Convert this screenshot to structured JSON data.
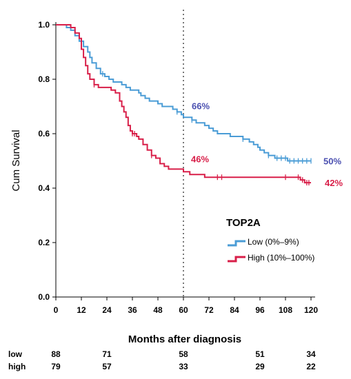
{
  "chart_data": {
    "type": "line",
    "subtype": "kaplan-meier-step",
    "title": "",
    "xlabel": "Months after diagnosis",
    "ylabel": "Cum Survival",
    "xlim": [
      0,
      120
    ],
    "ylim": [
      0,
      1
    ],
    "x_ticks": [
      0,
      12,
      24,
      36,
      48,
      60,
      72,
      84,
      96,
      108,
      120
    ],
    "y_ticks": [
      "0.0",
      "0.2",
      "0.4",
      "0.6",
      "0.8",
      "1.0"
    ],
    "reference_line": {
      "x": 60,
      "style": "dotted"
    },
    "legend": {
      "title": "TOP2A",
      "position": "right-middle"
    },
    "series": [
      {
        "name": "Low (0%–9%)",
        "color": "#4a9cd6",
        "points": [
          [
            0,
            1.0
          ],
          [
            3,
            1.0
          ],
          [
            5,
            0.99
          ],
          [
            7,
            0.98
          ],
          [
            9,
            0.96
          ],
          [
            11,
            0.94
          ],
          [
            13,
            0.92
          ],
          [
            15,
            0.9
          ],
          [
            16,
            0.88
          ],
          [
            17,
            0.86
          ],
          [
            19,
            0.84
          ],
          [
            21,
            0.82
          ],
          [
            23,
            0.81
          ],
          [
            25,
            0.8
          ],
          [
            27,
            0.79
          ],
          [
            29,
            0.79
          ],
          [
            31,
            0.78
          ],
          [
            33,
            0.77
          ],
          [
            35,
            0.76
          ],
          [
            37,
            0.76
          ],
          [
            39,
            0.75
          ],
          [
            40,
            0.74
          ],
          [
            42,
            0.73
          ],
          [
            44,
            0.72
          ],
          [
            46,
            0.72
          ],
          [
            48,
            0.71
          ],
          [
            50,
            0.7
          ],
          [
            53,
            0.7
          ],
          [
            55,
            0.69
          ],
          [
            57,
            0.68
          ],
          [
            59,
            0.67
          ],
          [
            60,
            0.66
          ],
          [
            62,
            0.66
          ],
          [
            64,
            0.65
          ],
          [
            66,
            0.64
          ],
          [
            68,
            0.64
          ],
          [
            70,
            0.63
          ],
          [
            72,
            0.62
          ],
          [
            74,
            0.61
          ],
          [
            76,
            0.6
          ],
          [
            79,
            0.6
          ],
          [
            82,
            0.59
          ],
          [
            85,
            0.59
          ],
          [
            88,
            0.58
          ],
          [
            91,
            0.57
          ],
          [
            93,
            0.56
          ],
          [
            95,
            0.55
          ],
          [
            96,
            0.54
          ],
          [
            98,
            0.53
          ],
          [
            100,
            0.52
          ],
          [
            103,
            0.51
          ],
          [
            106,
            0.51
          ],
          [
            109,
            0.5
          ],
          [
            120,
            0.5
          ]
        ],
        "censor_x": [
          22,
          57,
          64,
          88,
          100,
          104,
          106,
          108,
          110,
          112,
          114,
          116,
          118,
          120
        ],
        "annotations": [
          {
            "x": 60,
            "label": "66%"
          },
          {
            "x": 120,
            "label": "50%"
          }
        ]
      },
      {
        "name": "High (10%–100%)",
        "color": "#d81e48",
        "points": [
          [
            0,
            1.0
          ],
          [
            5,
            1.0
          ],
          [
            7,
            0.99
          ],
          [
            9,
            0.97
          ],
          [
            11,
            0.95
          ],
          [
            12,
            0.91
          ],
          [
            13,
            0.88
          ],
          [
            14,
            0.85
          ],
          [
            15,
            0.82
          ],
          [
            16,
            0.8
          ],
          [
            18,
            0.78
          ],
          [
            20,
            0.77
          ],
          [
            24,
            0.77
          ],
          [
            26,
            0.76
          ],
          [
            28,
            0.75
          ],
          [
            30,
            0.72
          ],
          [
            31,
            0.7
          ],
          [
            32,
            0.68
          ],
          [
            33,
            0.66
          ],
          [
            34,
            0.63
          ],
          [
            35,
            0.61
          ],
          [
            36,
            0.6
          ],
          [
            38,
            0.59
          ],
          [
            39,
            0.58
          ],
          [
            41,
            0.56
          ],
          [
            43,
            0.54
          ],
          [
            45,
            0.52
          ],
          [
            47,
            0.51
          ],
          [
            49,
            0.49
          ],
          [
            51,
            0.48
          ],
          [
            53,
            0.47
          ],
          [
            59,
            0.47
          ],
          [
            60,
            0.46
          ],
          [
            63,
            0.45
          ],
          [
            66,
            0.45
          ],
          [
            70,
            0.44
          ],
          [
            112,
            0.44
          ],
          [
            115,
            0.43
          ],
          [
            117,
            0.42
          ],
          [
            120,
            0.42
          ]
        ],
        "censor_x": [
          18,
          36,
          37,
          45,
          76,
          78,
          108,
          114,
          116,
          118,
          119
        ],
        "annotations": [
          {
            "x": 60,
            "label": "46%"
          },
          {
            "x": 120,
            "label": "42%"
          }
        ]
      }
    ],
    "risk_table": {
      "times": [
        0,
        24,
        60,
        96,
        120
      ],
      "rows": [
        {
          "label": "low",
          "values": [
            "88",
            "71",
            "58",
            "51",
            "34"
          ]
        },
        {
          "label": "high",
          "values": [
            "79",
            "57",
            "33",
            "29",
            "22"
          ]
        }
      ]
    }
  }
}
